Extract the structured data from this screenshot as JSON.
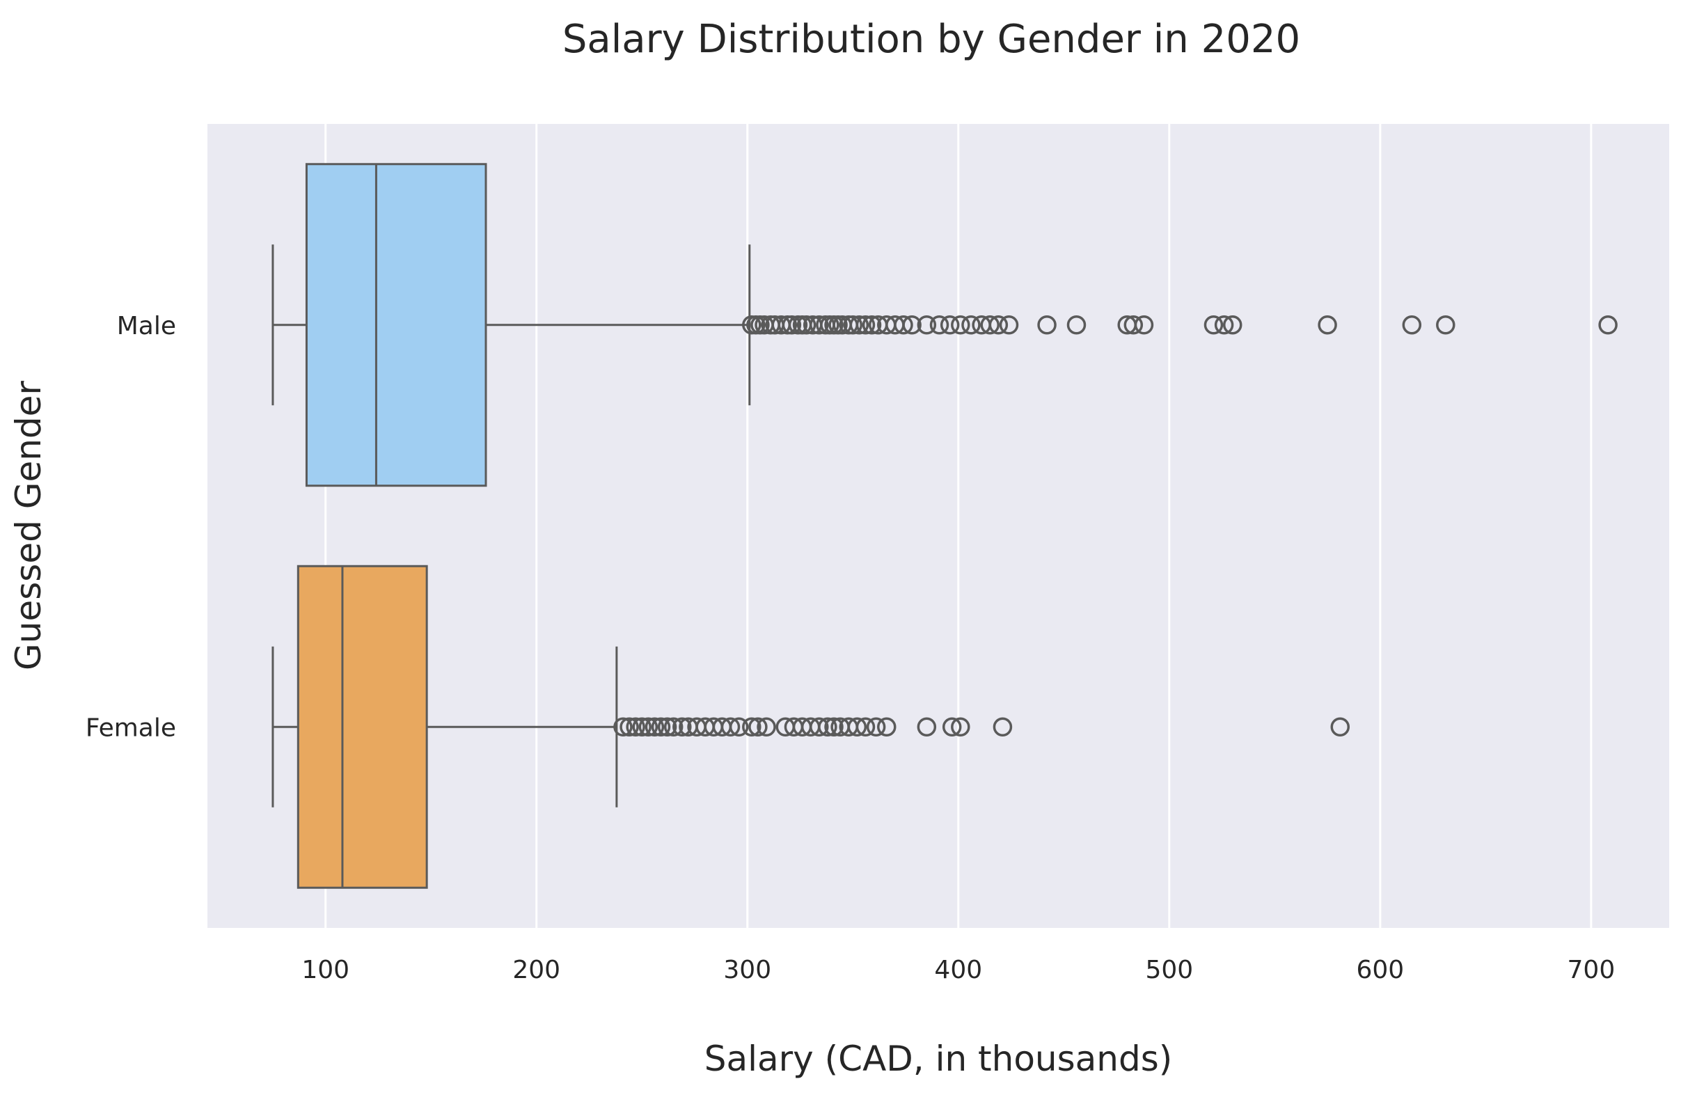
{
  "chart_data": {
    "type": "box",
    "orientation": "horizontal",
    "title": "Salary Distribution by Gender in 2020",
    "xlabel": "Salary (CAD, in thousands)",
    "ylabel": "Guessed Gender",
    "xlim": [
      44,
      737
    ],
    "xticks": [
      100,
      200,
      300,
      400,
      500,
      600,
      700
    ],
    "grid": true,
    "background_color": "#eaeaf2",
    "categories": [
      "Male",
      "Female"
    ],
    "series": [
      {
        "category": "Male",
        "color": "#a0cef2",
        "whisker_low": 75,
        "q1": 91,
        "median": 124,
        "q3": 176,
        "whisker_high": 301,
        "outliers": [
          302,
          304,
          306,
          308,
          311,
          313,
          316,
          319,
          321,
          324,
          326,
          328,
          331,
          334,
          337,
          339,
          341,
          343,
          345,
          348,
          350,
          353,
          356,
          359,
          362,
          366,
          370,
          374,
          378,
          385,
          391,
          396,
          401,
          406,
          411,
          415,
          419,
          424,
          442,
          456,
          480,
          483,
          488,
          521,
          526,
          530,
          575,
          615,
          631,
          708
        ]
      },
      {
        "category": "Female",
        "color": "#e8a85f",
        "whisker_low": 75,
        "q1": 87,
        "median": 108,
        "q3": 148,
        "whisker_high": 238,
        "outliers": [
          241,
          244,
          247,
          250,
          253,
          256,
          259,
          262,
          265,
          269,
          272,
          276,
          280,
          284,
          288,
          292,
          296,
          302,
          305,
          309,
          318,
          322,
          326,
          330,
          334,
          338,
          341,
          344,
          348,
          352,
          356,
          361,
          366,
          385,
          397,
          401,
          421,
          581
        ]
      }
    ]
  }
}
